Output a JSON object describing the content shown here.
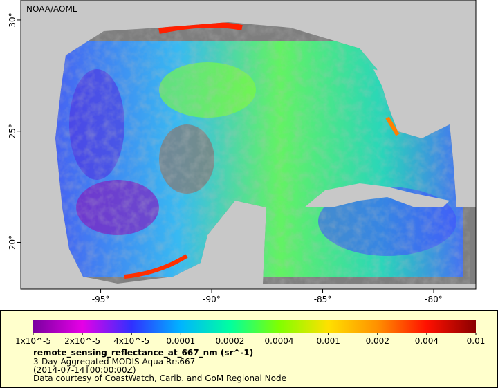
{
  "watermark": "NOAA/AOML",
  "map": {
    "lonlim": [
      -98.6,
      -78.1
    ],
    "latlim": [
      17.9,
      30.9
    ],
    "lon_ticks": [
      {
        "value": -95,
        "label": "-95°"
      },
      {
        "value": -90,
        "label": "-90°"
      },
      {
        "value": -85,
        "label": "-85°"
      },
      {
        "value": -80,
        "label": "-80°"
      }
    ],
    "lat_ticks": [
      {
        "value": 30,
        "label": "30°"
      },
      {
        "value": 25,
        "label": "25°"
      },
      {
        "value": 20,
        "label": "20°"
      }
    ]
  },
  "colorbar": {
    "labels": [
      "1x10^-5",
      "2x10^-5",
      "4x10^-5",
      "0.0001",
      "0.0002",
      "0.0004",
      "0.001",
      "0.002",
      "0.004",
      "0.01"
    ],
    "colors": [
      "#7a00a0",
      "#e600e6",
      "#3030ff",
      "#00b4ff",
      "#00ffa0",
      "#80ff00",
      "#ffe000",
      "#ff9000",
      "#ff1000",
      "#8a0000"
    ]
  },
  "legend": {
    "variable": "remote_sensing_reflectance_at_667_nm (sr^-1)",
    "description": "3-Day Aggregated MODIS Aqua Rrs667",
    "time": "(2014-07-14T00:00:00Z)",
    "credit": "Data courtesy of CoastWatch, Carib. and GoM Regional Node"
  }
}
